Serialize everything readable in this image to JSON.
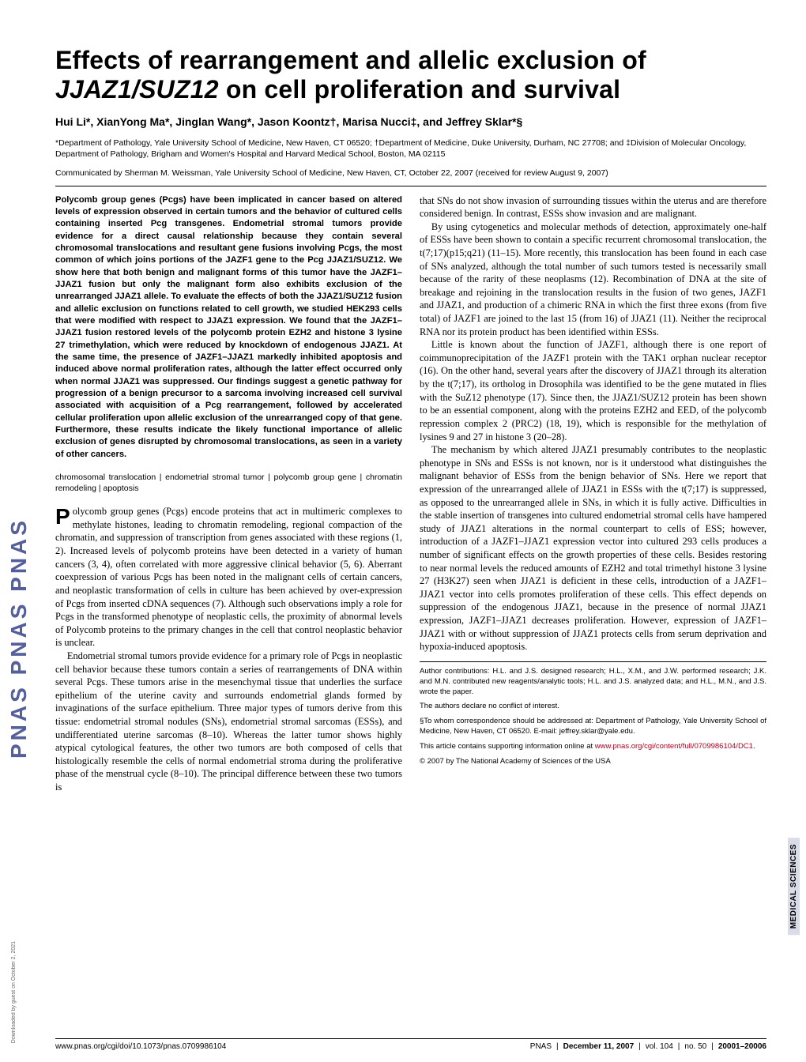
{
  "sidebar": {
    "brand": "PNAS   PNAS   PNAS"
  },
  "title_line1": "Effects of rearrangement and allelic exclusion of",
  "title_line2_ital": "JJAZ1/SUZ12",
  "title_line2_rest": " on cell proliferation and survival",
  "authors": "Hui Li*, XianYong Ma*, Jinglan Wang*, Jason Koontz†, Marisa Nucci‡, and Jeffrey Sklar*§",
  "affil": "*Department of Pathology, Yale University School of Medicine, New Haven, CT 06520; †Department of Medicine, Duke University, Durham, NC 27708; and ‡Division of Molecular Oncology, Department of Pathology, Brigham and Women's Hospital and Harvard Medical School, Boston, MA 02115",
  "communicated": "Communicated by Sherman M. Weissman, Yale University School of Medicine, New Haven, CT, October 22, 2007 (received for review August 9, 2007)",
  "abstract": "Polycomb group genes (Pcgs) have been implicated in cancer based on altered levels of expression observed in certain tumors and the behavior of cultured cells containing inserted Pcg transgenes. Endometrial stromal tumors provide evidence for a direct causal relationship because they contain several chromosomal translocations and resultant gene fusions involving Pcgs, the most common of which joins portions of the JAZF1 gene to the Pcg JJAZ1/SUZ12. We show here that both benign and malignant forms of this tumor have the JAZF1–JJAZ1 fusion but only the malignant form also exhibits exclusion of the unrearranged JJAZ1 allele. To evaluate the effects of both the JJAZ1/SUZ12 fusion and allelic exclusion on functions related to cell growth, we studied HEK293 cells that were modified with respect to JJAZ1 expression. We found that the JAZF1–JJAZ1 fusion restored levels of the polycomb protein EZH2 and histone 3 lysine 27 trimethylation, which were reduced by knockdown of endogenous JJAZ1. At the same time, the presence of JAZF1–JJAZ1 markedly inhibited apoptosis and induced above normal proliferation rates, although the latter effect occurred only when normal JJAZ1 was suppressed. Our findings suggest a genetic pathway for progression of a benign precursor to a sarcoma involving increased cell survival associated with acquisition of a Pcg rearrangement, followed by accelerated cellular proliferation upon allelic exclusion of the unrearranged copy of that gene. Furthermore, these results indicate the likely functional importance of allelic exclusion of genes disrupted by chromosomal translocations, as seen in a variety of other cancers.",
  "keywords": "chromosomal translocation | endometrial stromal tumor | polycomb group gene | chromatin remodeling | apoptosis",
  "body_p1": "Polycomb group genes (Pcgs) encode proteins that act in multimeric complexes to methylate histones, leading to chromatin remodeling, regional compaction of the chromatin, and suppression of transcription from genes associated with these regions (1, 2). Increased levels of polycomb proteins have been detected in a variety of human cancers (3, 4), often correlated with more aggressive clinical behavior (5, 6). Aberrant coexpression of various Pcgs has been noted in the malignant cells of certain cancers, and neoplastic transformation of cells in culture has been achieved by over-expression of Pcgs from inserted cDNA sequences (7). Although such observations imply a role for Pcgs in the transformed phenotype of neoplastic cells, the proximity of abnormal levels of Polycomb proteins to the primary changes in the cell that control neoplastic behavior is unclear.",
  "body_p2": "Endometrial stromal tumors provide evidence for a primary role of Pcgs in neoplastic cell behavior because these tumors contain a series of rearrangements of DNA within several Pcgs. These tumors arise in the mesenchymal tissue that underlies the surface epithelium of the uterine cavity and surrounds endometrial glands formed by invaginations of the surface epithelium. Three major types of tumors derive from this tissue: endometrial stromal nodules (SNs), endometrial stromal sarcomas (ESSs), and undifferentiated uterine sarcomas (8–10). Whereas the latter tumor shows highly atypical cytological features, the other two tumors are both composed of cells that histologically resemble the cells of normal endometrial stroma during the proliferative phase of the menstrual cycle (8–10). The principal difference between these two tumors is",
  "body_p3": "that SNs do not show invasion of surrounding tissues within the uterus and are therefore considered benign. In contrast, ESSs show invasion and are malignant.",
  "body_p4": "By using cytogenetics and molecular methods of detection, approximately one-half of ESSs have been shown to contain a specific recurrent chromosomal translocation, the t(7;17)(p15;q21) (11–15). More recently, this translocation has been found in each case of SNs analyzed, although the total number of such tumors tested is necessarily small because of the rarity of these neoplasms (12). Recombination of DNA at the site of breakage and rejoining in the translocation results in the fusion of two genes, JAZF1 and JJAZ1, and production of a chimeric RNA in which the first three exons (from five total) of JAZF1 are joined to the last 15 (from 16) of JJAZ1 (11). Neither the reciprocal RNA nor its protein product has been identified within ESSs.",
  "body_p5": "Little is known about the function of JAZF1, although there is one report of coimmunoprecipitation of the JAZF1 protein with the TAK1 orphan nuclear receptor (16). On the other hand, several years after the discovery of JJAZ1 through its alteration by the t(7;17), its ortholog in Drosophila was identified to be the gene mutated in flies with the SuZ12 phenotype (17). Since then, the JJAZ1/SUZ12 protein has been shown to be an essential component, along with the proteins EZH2 and EED, of the polycomb repression complex 2 (PRC2) (18, 19), which is responsible for the methylation of lysines 9 and 27 in histone 3 (20–28).",
  "body_p6": "The mechanism by which altered JJAZ1 presumably contributes to the neoplastic phenotype in SNs and ESSs is not known, nor is it understood what distinguishes the malignant behavior of ESSs from the benign behavior of SNs. Here we report that expression of the unrearranged allele of JJAZ1 in ESSs with the t(7;17) is suppressed, as opposed to the unrearranged allele in SNs, in which it is fully active. Difficulties in the stable insertion of transgenes into cultured endometrial stromal cells have hampered study of JJAZ1 alterations in the normal counterpart to cells of ESS; however, introduction of a JAZF1–JJAZ1 expression vector into cultured 293 cells produces a number of significant effects on the growth properties of these cells. Besides restoring to near normal levels the reduced amounts of EZH2 and total trimethyl histone 3 lysine 27 (H3K27) seen when JJAZ1 is deficient in these cells, introduction of a JAZF1–JJAZ1 vector into cells promotes proliferation of these cells. This effect depends on suppression of the endogenous JJAZ1, because in the presence of normal JJAZ1 expression, JAZF1–JJAZ1 decreases proliferation. However, expression of JAZF1–JJAZ1 with or without suppression of JJAZ1 protects cells from serum deprivation and hypoxia-induced apoptosis.",
  "footnotes": {
    "contrib": "Author contributions: H.L. and J.S. designed research; H.L., X.M., and J.W. performed research; J.K. and M.N. contributed new reagents/analytic tools; H.L. and J.S. analyzed data; and H.L., M.N., and J.S. wrote the paper.",
    "conflict": "The authors declare no conflict of interest.",
    "corresp": "§To whom correspondence should be addressed at: Department of Pathology, Yale University School of Medicine, New Haven, CT 06520. E-mail: jeffrey.sklar@yale.edu.",
    "si_prefix": "This article contains supporting information online at ",
    "si_link": "www.pnas.org/cgi/content/full/0709986104/DC1",
    "si_suffix": ".",
    "copyright": "© 2007 by The National Academy of Sciences of the USA"
  },
  "footer": {
    "left": "www.pnas.org/cgi/doi/10.1073/pnas.0709986104",
    "right_journal": "PNAS",
    "right_date": "December 11, 2007",
    "right_vol": "vol. 104",
    "right_issue": "no. 50",
    "right_pages": "20001–20006"
  },
  "side_badge": "MEDICAL SCIENCES",
  "download_note": "Downloaded by guest on October 2, 2021"
}
